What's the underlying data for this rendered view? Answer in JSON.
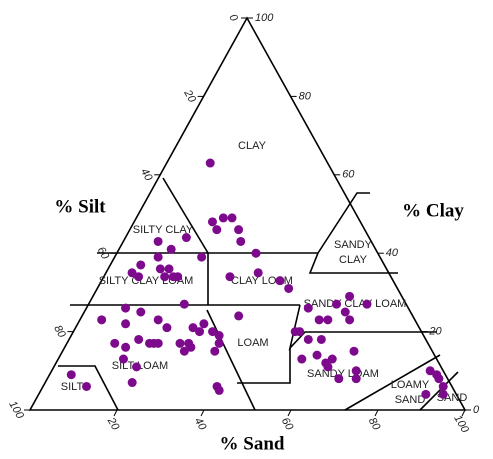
{
  "chart_data": {
    "type": "ternary",
    "axis_titles": {
      "silt": "% Silt",
      "clay": "% Clay",
      "sand": "% Sand"
    },
    "silt_ticks": [
      0,
      20,
      40,
      60,
      80,
      100
    ],
    "clay_ticks": [
      0,
      20,
      40,
      60,
      80,
      100
    ],
    "sand_ticks": [
      20,
      40,
      60,
      80,
      100
    ],
    "regions": [
      {
        "lines": [
          "CLAY"
        ]
      },
      {
        "lines": [
          "SILTY CLAY"
        ]
      },
      {
        "lines": [
          "SANDY",
          "CLAY"
        ]
      },
      {
        "lines": [
          "SILTY CLAY LOAM"
        ]
      },
      {
        "lines": [
          "CLAY LOAM"
        ]
      },
      {
        "lines": [
          "SANDY CLAY LOAM"
        ]
      },
      {
        "lines": [
          "LOAM"
        ]
      },
      {
        "lines": [
          "SILT LOAM"
        ]
      },
      {
        "lines": [
          "SANDY LOAM"
        ]
      },
      {
        "lines": [
          "SILT"
        ]
      },
      {
        "lines": [
          "LOAMY",
          "SAND"
        ]
      },
      {
        "lines": [
          "SAND"
        ]
      }
    ],
    "color": "#7d0a8c",
    "sand": [
      10,
      18,
      20,
      22,
      20,
      27,
      25,
      32,
      8,
      12,
      14,
      7,
      6,
      8,
      10,
      12,
      14,
      14,
      16,
      17,
      20,
      29,
      35,
      41,
      44,
      51,
      55,
      57,
      57,
      59,
      62,
      60,
      64,
      5,
      11,
      13,
      18,
      22,
      27,
      29,
      29,
      32,
      34,
      36,
      21,
      21,
      19,
      16,
      14,
      15,
      20,
      26,
      28,
      29,
      28,
      35,
      35,
      19,
      20,
      40,
      41,
      51,
      52,
      55,
      58,
      59,
      63,
      56,
      62,
      63,
      67,
      70,
      67,
      71,
      87,
      89,
      92,
      90,
      89,
      93,
      5,
      10,
      11,
      9
    ],
    "clay": [
      63,
      48,
      49,
      49,
      46,
      43,
      46,
      40,
      43,
      41,
      44,
      37,
      35,
      34,
      39,
      36,
      34,
      36,
      34,
      34,
      39,
      34,
      35,
      33,
      31,
      26,
      23,
      23,
      27,
      29,
      23,
      25,
      27,
      23,
      22,
      25,
      23,
      27,
      21,
      20,
      22,
      20,
      19,
      24,
      21,
      17,
      17,
      18,
      16,
      13,
      17,
      17,
      17,
      16,
      15,
      17,
      15,
      11,
      7,
      6,
      5,
      20,
      20,
      18,
      18,
      14,
      13,
      13,
      12,
      11,
      15,
      10,
      8,
      8,
      10,
      9,
      6,
      8,
      4,
      4,
      9,
      6,
      17,
      26
    ]
  }
}
